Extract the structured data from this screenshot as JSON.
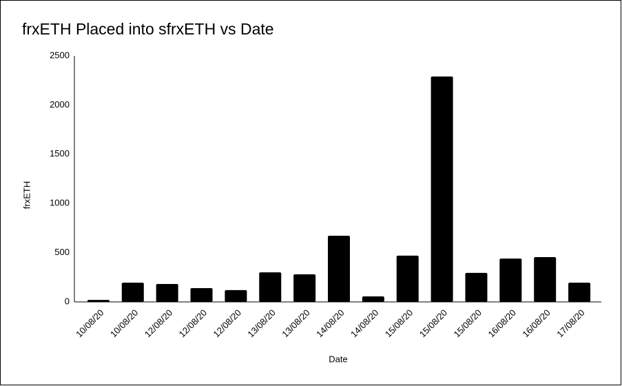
{
  "chart_data": {
    "type": "bar",
    "title": "frxETH Placed into sfrxETH vs Date",
    "x_label": "Date",
    "y_label": "frxETH",
    "categories": [
      "10/08/20",
      "10/08/20",
      "12/08/20",
      "12/08/20",
      "12/08/20",
      "13/08/20",
      "13/08/20",
      "14/08/20",
      "14/08/20",
      "15/08/20",
      "15/08/20",
      "15/08/20",
      "16/08/20",
      "16/08/20",
      "17/08/20"
    ],
    "values": [
      20,
      195,
      182,
      140,
      120,
      300,
      280,
      672,
      56,
      470,
      2290,
      295,
      440,
      455,
      195
    ],
    "color": "#000000",
    "ylim": [
      0,
      2500
    ],
    "yticks": [
      0,
      500,
      1000,
      1500,
      2000,
      2500
    ],
    "grid": false
  }
}
